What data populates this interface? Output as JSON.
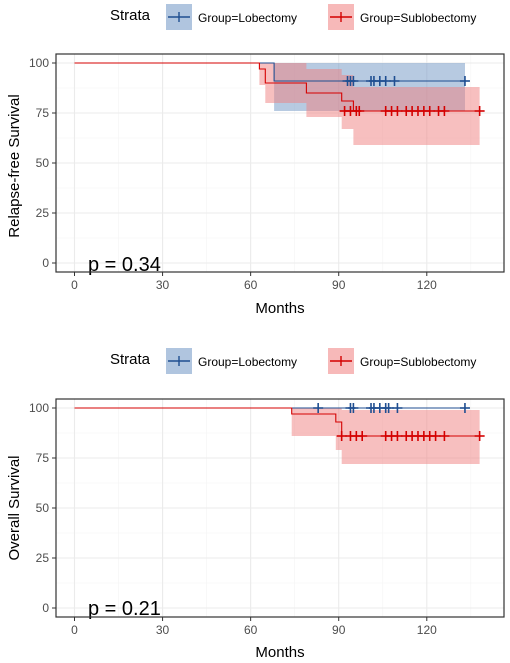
{
  "colors": {
    "lobectomy_line": "#1f4e91",
    "lobectomy_fill": "#6f95c4",
    "sublobectomy_line": "#d40000",
    "sublobectomy_fill": "#f07f7f"
  },
  "chart_data": [
    {
      "type": "line",
      "subtype": "kaplan-meier",
      "legend": {
        "title": "Strata",
        "position": "top",
        "entries": [
          "Group=Lobectomy",
          "Group=Sublobectomy"
        ]
      },
      "xlabel": "Months",
      "ylabel": "Relapse-free Survival",
      "xlim": [
        0,
        140
      ],
      "ylim": [
        0,
        100
      ],
      "xticks": [
        0,
        30,
        60,
        90,
        120
      ],
      "yticks": [
        0,
        25,
        50,
        75,
        100
      ],
      "grid": true,
      "annotation": "p = 0.34",
      "series": [
        {
          "name": "Group=Lobectomy",
          "steps": [
            [
              0,
              100
            ],
            [
              68,
              100
            ],
            [
              68,
              91
            ],
            [
              133,
              91
            ]
          ],
          "ci": [
            [
              0,
              100,
              100
            ],
            [
              68,
              100,
              100
            ],
            [
              68,
              76,
              100
            ],
            [
              133,
              76,
              100
            ]
          ],
          "censor_x": [
            93,
            94,
            95,
            101,
            102,
            104,
            106,
            109,
            133
          ],
          "censor_y": 91
        },
        {
          "name": "Group=Sublobectomy",
          "steps": [
            [
              0,
              100
            ],
            [
              63,
              100
            ],
            [
              63,
              97
            ],
            [
              65,
              97
            ],
            [
              65,
              90
            ],
            [
              79,
              90
            ],
            [
              79,
              85
            ],
            [
              91,
              85
            ],
            [
              91,
              81
            ],
            [
              95,
              81
            ],
            [
              95,
              76
            ],
            [
              138,
              76
            ]
          ],
          "ci": [
            [
              0,
              100,
              100
            ],
            [
              63,
              100,
              100
            ],
            [
              63,
              89,
              100
            ],
            [
              65,
              89,
              100
            ],
            [
              65,
              80,
              100
            ],
            [
              79,
              80,
              100
            ],
            [
              79,
              73,
              97
            ],
            [
              91,
              73,
              97
            ],
            [
              91,
              67,
              94
            ],
            [
              95,
              67,
              94
            ],
            [
              95,
              59,
              88
            ],
            [
              138,
              59,
              88
            ]
          ],
          "censor_x": [
            92,
            94,
            96,
            97,
            106,
            108,
            110,
            113,
            115,
            117,
            119,
            121,
            124,
            126,
            138
          ],
          "censor_y": 76
        }
      ]
    },
    {
      "type": "line",
      "subtype": "kaplan-meier",
      "legend": {
        "title": "Strata",
        "position": "top",
        "entries": [
          "Group=Lobectomy",
          "Group=Sublobectomy"
        ]
      },
      "xlabel": "Months",
      "ylabel": "Overall Survival",
      "xlim": [
        0,
        140
      ],
      "ylim": [
        0,
        100
      ],
      "xticks": [
        0,
        30,
        60,
        90,
        120
      ],
      "yticks": [
        0,
        25,
        50,
        75,
        100
      ],
      "grid": true,
      "annotation": "p = 0.21",
      "series": [
        {
          "name": "Group=Lobectomy",
          "steps": [
            [
              0,
              100
            ],
            [
              133,
              100
            ]
          ],
          "ci": [
            [
              0,
              100,
              100
            ],
            [
              133,
              100,
              100
            ]
          ],
          "censor_x": [
            83,
            94,
            95,
            101,
            102,
            104,
            106,
            107,
            110,
            133
          ],
          "censor_y": 100
        },
        {
          "name": "Group=Sublobectomy",
          "steps": [
            [
              0,
              100
            ],
            [
              74,
              100
            ],
            [
              74,
              97
            ],
            [
              89,
              97
            ],
            [
              89,
              93
            ],
            [
              91,
              93
            ],
            [
              91,
              86
            ],
            [
              138,
              86
            ]
          ],
          "ci": [
            [
              0,
              100,
              100
            ],
            [
              74,
              100,
              100
            ],
            [
              74,
              86,
              100
            ],
            [
              89,
              86,
              100
            ],
            [
              89,
              79,
              100
            ],
            [
              91,
              79,
              100
            ],
            [
              91,
              72,
              99
            ],
            [
              138,
              72,
              99
            ]
          ],
          "censor_x": [
            91,
            94,
            96,
            98,
            106,
            108,
            110,
            113,
            115,
            117,
            119,
            121,
            123,
            126,
            138
          ],
          "censor_y": 86
        }
      ]
    }
  ]
}
